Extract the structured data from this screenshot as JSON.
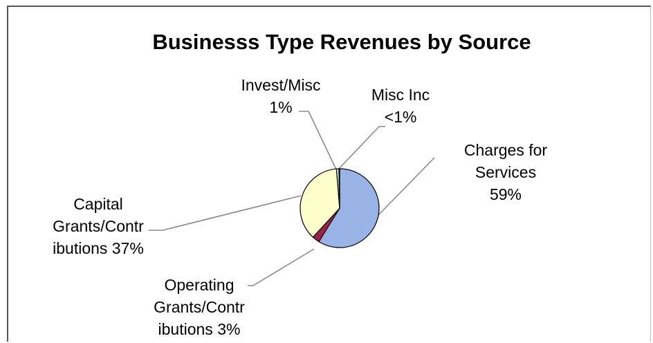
{
  "chart_data": {
    "type": "pie",
    "title": "Businesss Type Revenues by Source",
    "slices": [
      {
        "id": "charges",
        "label_lines": [
          "Charges for",
          "Services",
          "59%"
        ],
        "value": 59,
        "color": "#99b3e6"
      },
      {
        "id": "operating",
        "label_lines": [
          "Operating",
          "Grants/Contr",
          "ibutions  3%"
        ],
        "value": 3,
        "color": "#a0204a"
      },
      {
        "id": "capital",
        "label_lines": [
          "Capital",
          "Grants/Contr",
          "ibutions 37%"
        ],
        "value": 37,
        "color": "#ffffcc"
      },
      {
        "id": "invest",
        "label_lines": [
          "Invest/Misc",
          "1%"
        ],
        "value": 1,
        "color": "#ccffff"
      },
      {
        "id": "misc",
        "label_lines": [
          "Misc Inc",
          "<1%"
        ],
        "value": 0.3,
        "color": "#660066"
      }
    ],
    "legend": "none"
  }
}
